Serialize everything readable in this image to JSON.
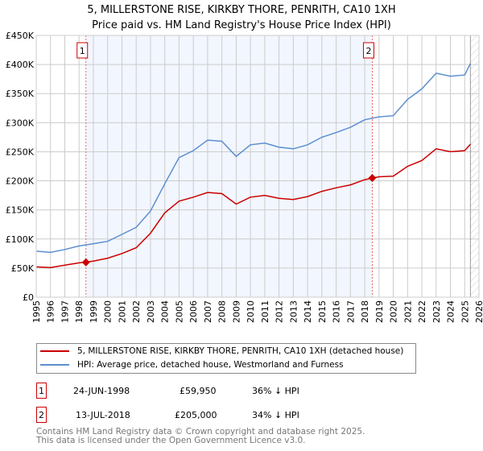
{
  "chart_data": {
    "type": "line",
    "title": "5, MILLERSTONE RISE, KIRKBY THORE, PENRITH, CA10 1XH",
    "subtitle": "Price paid vs. HM Land Registry's House Price Index (HPI)",
    "xlim": [
      1995,
      2026
    ],
    "ylim": [
      0,
      450000
    ],
    "x_ticks": [
      "1995",
      "1996",
      "1997",
      "1998",
      "1999",
      "2000",
      "2001",
      "2002",
      "2003",
      "2004",
      "2005",
      "2006",
      "2007",
      "2008",
      "2009",
      "2010",
      "2011",
      "2012",
      "2013",
      "2014",
      "2015",
      "2016",
      "2017",
      "2018",
      "2019",
      "2020",
      "2021",
      "2022",
      "2023",
      "2024",
      "2025",
      "2026"
    ],
    "y_ticks": [
      {
        "v": 0,
        "label": "£0"
      },
      {
        "v": 50000,
        "label": "£50K"
      },
      {
        "v": 100000,
        "label": "£100K"
      },
      {
        "v": 150000,
        "label": "£150K"
      },
      {
        "v": 200000,
        "label": "£200K"
      },
      {
        "v": 250000,
        "label": "£250K"
      },
      {
        "v": 300000,
        "label": "£300K"
      },
      {
        "v": 350000,
        "label": "£350K"
      },
      {
        "v": 400000,
        "label": "£400K"
      },
      {
        "v": 450000,
        "label": "£450K"
      }
    ],
    "x": [
      1995,
      1996,
      1997,
      1998,
      1999,
      2000,
      2001,
      2002,
      2003,
      2004,
      2005,
      2006,
      2007,
      2008,
      2009,
      2010,
      2011,
      2012,
      2013,
      2014,
      2015,
      2016,
      2017,
      2018,
      2019,
      2020,
      2021,
      2022,
      2023,
      2024,
      2025,
      2025.4
    ],
    "series": [
      {
        "name": "5, MILLERSTONE RISE, KIRKBY THORE, PENRITH, CA10 1XH (detached house)",
        "color": "#cc0000",
        "values": [
          52000,
          51000,
          55000,
          59000,
          62000,
          67000,
          75000,
          85000,
          110000,
          145000,
          165000,
          172000,
          180000,
          178000,
          160000,
          172000,
          175000,
          170000,
          168000,
          173000,
          182000,
          188000,
          193000,
          202000,
          207000,
          208000,
          225000,
          235000,
          255000,
          250000,
          252000,
          263000
        ]
      },
      {
        "name": "HPI: Average price, detached house, Westmorland and Furness",
        "color": "#5b8fd0",
        "values": [
          79000,
          77000,
          82000,
          88000,
          92000,
          96000,
          108000,
          120000,
          148000,
          195000,
          240000,
          252000,
          270000,
          268000,
          242000,
          262000,
          265000,
          258000,
          255000,
          262000,
          275000,
          283000,
          292000,
          305000,
          310000,
          312000,
          340000,
          358000,
          385000,
          380000,
          382000,
          402000
        ]
      }
    ],
    "sales": [
      {
        "id": "1",
        "x": 1998.48,
        "value": 59950
      },
      {
        "id": "2",
        "x": 2018.53,
        "value": 205000
      }
    ],
    "shaded_range": [
      1998.48,
      2018.53
    ],
    "hatched_from": 2025.4,
    "grid": true
  },
  "table": [
    {
      "id": "1",
      "date": "24-JUN-1998",
      "price": "£59,950",
      "hpi": "36% ↓ HPI"
    },
    {
      "id": "2",
      "date": "13-JUL-2018",
      "price": "£205,000",
      "hpi": "34% ↓ HPI"
    }
  ],
  "footer": [
    "Contains HM Land Registry data © Crown copyright and database right 2025.",
    "This data is licensed under the Open Government Licence v3.0."
  ]
}
